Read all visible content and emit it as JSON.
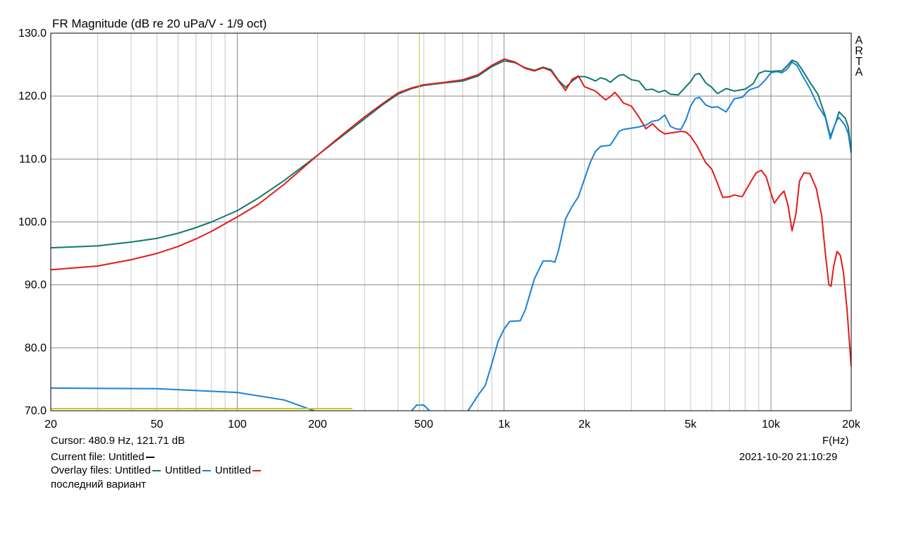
{
  "chart_data": {
    "type": "line",
    "title": "FR Magnitude (dB re 20 uPa/V - 1/9 oct)",
    "xlabel": "F(Hz)",
    "ylabel": "",
    "x_scale": "log",
    "xlim": [
      20,
      20000
    ],
    "ylim": [
      70,
      130
    ],
    "grid": true,
    "x_tick_labels": [
      {
        "value": 20,
        "label": "20"
      },
      {
        "value": 50,
        "label": "50"
      },
      {
        "value": 100,
        "label": "100"
      },
      {
        "value": 200,
        "label": "200"
      },
      {
        "value": 500,
        "label": "500"
      },
      {
        "value": 1000,
        "label": "1k"
      },
      {
        "value": 2000,
        "label": "2k"
      },
      {
        "value": 5000,
        "label": "5k"
      },
      {
        "value": 10000,
        "label": "10k"
      },
      {
        "value": 20000,
        "label": "20k"
      }
    ],
    "y_tick_labels": [
      {
        "value": 70,
        "label": "70.0"
      },
      {
        "value": 80,
        "label": "80.0"
      },
      {
        "value": 90,
        "label": "90.0"
      },
      {
        "value": 100,
        "label": "100.0"
      },
      {
        "value": 110,
        "label": "110.0"
      },
      {
        "value": 120,
        "label": "120.0"
      },
      {
        "value": 130,
        "label": "130.0"
      }
    ],
    "watermark": "ARTA",
    "cursor": {
      "frequency_hz": 480.9,
      "level_db": 121.71,
      "color": "#c8c832"
    },
    "series": [
      {
        "name": "Untitled",
        "color": "#0e7a6e",
        "points": [
          [
            20,
            95.9
          ],
          [
            30,
            96.2
          ],
          [
            40,
            96.8
          ],
          [
            50,
            97.4
          ],
          [
            60,
            98.2
          ],
          [
            70,
            99.1
          ],
          [
            80,
            100.0
          ],
          [
            100,
            101.8
          ],
          [
            120,
            103.8
          ],
          [
            150,
            106.6
          ],
          [
            200,
            110.6
          ],
          [
            250,
            113.8
          ],
          [
            300,
            116.4
          ],
          [
            350,
            118.6
          ],
          [
            400,
            120.3
          ],
          [
            450,
            121.2
          ],
          [
            500,
            121.7
          ],
          [
            600,
            122.1
          ],
          [
            700,
            122.4
          ],
          [
            800,
            123.2
          ],
          [
            900,
            124.7
          ],
          [
            1000,
            125.6
          ],
          [
            1100,
            125.3
          ],
          [
            1200,
            124.5
          ],
          [
            1300,
            124.1
          ],
          [
            1400,
            124.6
          ],
          [
            1500,
            124.2
          ],
          [
            1600,
            122.5
          ],
          [
            1700,
            121.4
          ],
          [
            1800,
            122.4
          ],
          [
            1900,
            123.1
          ],
          [
            2000,
            123.1
          ],
          [
            2100,
            122.8
          ],
          [
            2200,
            122.4
          ],
          [
            2300,
            122.9
          ],
          [
            2400,
            122.7
          ],
          [
            2500,
            122.2
          ],
          [
            2600,
            122.8
          ],
          [
            2700,
            123.3
          ],
          [
            2800,
            123.4
          ],
          [
            3000,
            122.6
          ],
          [
            3200,
            122.4
          ],
          [
            3400,
            121.0
          ],
          [
            3600,
            121.1
          ],
          [
            3800,
            120.6
          ],
          [
            4000,
            120.9
          ],
          [
            4200,
            120.3
          ],
          [
            4500,
            120.2
          ],
          [
            4800,
            121.5
          ],
          [
            5000,
            122.3
          ],
          [
            5200,
            123.4
          ],
          [
            5400,
            123.6
          ],
          [
            5700,
            122.1
          ],
          [
            6000,
            121.4
          ],
          [
            6300,
            120.4
          ],
          [
            6800,
            121.2
          ],
          [
            7300,
            120.8
          ],
          [
            8000,
            121.1
          ],
          [
            8600,
            122.0
          ],
          [
            9000,
            123.6
          ],
          [
            9500,
            124.0
          ],
          [
            10000,
            123.9
          ],
          [
            10500,
            124.0
          ],
          [
            11000,
            124.0
          ],
          [
            11500,
            124.8
          ],
          [
            12000,
            125.7
          ],
          [
            12500,
            125.4
          ],
          [
            13000,
            124.4
          ],
          [
            14000,
            122.2
          ],
          [
            15000,
            120.3
          ],
          [
            16000,
            116.8
          ],
          [
            16700,
            113.6
          ],
          [
            17500,
            115.8
          ],
          [
            18000,
            117.5
          ],
          [
            19000,
            116.5
          ],
          [
            19500,
            115.1
          ],
          [
            20000,
            111.0
          ]
        ]
      },
      {
        "name": "Untitled",
        "color": "#1a82d8",
        "points": [
          [
            20,
            73.6
          ],
          [
            50,
            73.5
          ],
          [
            100,
            72.9
          ],
          [
            150,
            71.7
          ],
          [
            200,
            69.8
          ],
          [
            220,
            69.0
          ],
          [
            430,
            69.0
          ],
          [
            470,
            70.9
          ],
          [
            500,
            70.9
          ],
          [
            540,
            69.5
          ],
          [
            720,
            69.5
          ],
          [
            800,
            72.5
          ],
          [
            850,
            74.0
          ],
          [
            900,
            77.5
          ],
          [
            950,
            81.0
          ],
          [
            1000,
            83.0
          ],
          [
            1050,
            84.2
          ],
          [
            1150,
            84.3
          ],
          [
            1200,
            86.0
          ],
          [
            1300,
            91.0
          ],
          [
            1400,
            93.8
          ],
          [
            1500,
            93.8
          ],
          [
            1550,
            93.6
          ],
          [
            1600,
            95.5
          ],
          [
            1700,
            100.5
          ],
          [
            1800,
            102.5
          ],
          [
            1900,
            104.0
          ],
          [
            2000,
            106.8
          ],
          [
            2100,
            109.4
          ],
          [
            2200,
            111.2
          ],
          [
            2300,
            112.0
          ],
          [
            2500,
            112.2
          ],
          [
            2600,
            113.3
          ],
          [
            2700,
            114.4
          ],
          [
            2800,
            114.7
          ],
          [
            3000,
            114.9
          ],
          [
            3200,
            115.1
          ],
          [
            3400,
            115.4
          ],
          [
            3600,
            116.0
          ],
          [
            3800,
            116.2
          ],
          [
            4000,
            117.0
          ],
          [
            4200,
            115.2
          ],
          [
            4400,
            114.8
          ],
          [
            4600,
            114.7
          ],
          [
            4800,
            116.2
          ],
          [
            5000,
            118.4
          ],
          [
            5200,
            119.6
          ],
          [
            5400,
            119.8
          ],
          [
            5700,
            118.6
          ],
          [
            6000,
            118.2
          ],
          [
            6300,
            118.3
          ],
          [
            6800,
            117.5
          ],
          [
            7300,
            119.6
          ],
          [
            7800,
            119.8
          ],
          [
            8300,
            121.0
          ],
          [
            9000,
            121.5
          ],
          [
            9500,
            122.5
          ],
          [
            10000,
            123.7
          ],
          [
            10500,
            123.9
          ],
          [
            11000,
            123.7
          ],
          [
            11500,
            124.3
          ],
          [
            12000,
            125.4
          ],
          [
            12500,
            124.9
          ],
          [
            13000,
            123.6
          ],
          [
            14000,
            121.2
          ],
          [
            15000,
            118.5
          ],
          [
            16000,
            116.6
          ],
          [
            16700,
            113.2
          ],
          [
            17500,
            115.9
          ],
          [
            18000,
            116.6
          ],
          [
            19000,
            115.3
          ],
          [
            19500,
            114.0
          ],
          [
            20000,
            111.0
          ]
        ]
      },
      {
        "name": "Untitled",
        "color": "#e31b1b",
        "points": [
          [
            20,
            92.4
          ],
          [
            30,
            93.0
          ],
          [
            40,
            94.0
          ],
          [
            50,
            95.0
          ],
          [
            60,
            96.1
          ],
          [
            70,
            97.3
          ],
          [
            80,
            98.5
          ],
          [
            100,
            100.8
          ],
          [
            120,
            102.8
          ],
          [
            150,
            106.0
          ],
          [
            200,
            110.6
          ],
          [
            250,
            114.0
          ],
          [
            300,
            116.7
          ],
          [
            350,
            118.8
          ],
          [
            400,
            120.5
          ],
          [
            450,
            121.3
          ],
          [
            500,
            121.8
          ],
          [
            600,
            122.2
          ],
          [
            700,
            122.6
          ],
          [
            800,
            123.4
          ],
          [
            900,
            124.9
          ],
          [
            1000,
            125.9
          ],
          [
            1100,
            125.4
          ],
          [
            1200,
            124.4
          ],
          [
            1300,
            124.0
          ],
          [
            1400,
            124.5
          ],
          [
            1500,
            124.0
          ],
          [
            1600,
            122.4
          ],
          [
            1700,
            120.9
          ],
          [
            1800,
            122.7
          ],
          [
            1900,
            123.2
          ],
          [
            2000,
            121.5
          ],
          [
            2200,
            120.8
          ],
          [
            2400,
            119.4
          ],
          [
            2500,
            119.9
          ],
          [
            2600,
            120.6
          ],
          [
            2700,
            119.8
          ],
          [
            2800,
            118.9
          ],
          [
            3000,
            118.4
          ],
          [
            3200,
            116.7
          ],
          [
            3400,
            114.8
          ],
          [
            3600,
            115.6
          ],
          [
            3800,
            114.6
          ],
          [
            4000,
            114.0
          ],
          [
            4300,
            114.2
          ],
          [
            4600,
            114.4
          ],
          [
            4800,
            114.3
          ],
          [
            5000,
            113.6
          ],
          [
            5300,
            112.0
          ],
          [
            5700,
            109.4
          ],
          [
            6000,
            108.4
          ],
          [
            6300,
            106.2
          ],
          [
            6600,
            103.9
          ],
          [
            7000,
            104.0
          ],
          [
            7300,
            104.3
          ],
          [
            7800,
            104.0
          ],
          [
            8300,
            106.0
          ],
          [
            8800,
            107.8
          ],
          [
            9200,
            108.2
          ],
          [
            9600,
            107.2
          ],
          [
            10000,
            104.6
          ],
          [
            10300,
            103.0
          ],
          [
            10800,
            104.2
          ],
          [
            11200,
            104.9
          ],
          [
            11600,
            102.6
          ],
          [
            12000,
            98.6
          ],
          [
            12400,
            101.2
          ],
          [
            12800,
            106.5
          ],
          [
            13300,
            107.8
          ],
          [
            14000,
            107.7
          ],
          [
            14800,
            105.3
          ],
          [
            15500,
            101.0
          ],
          [
            16000,
            95.0
          ],
          [
            16500,
            90.0
          ],
          [
            16800,
            89.8
          ],
          [
            17200,
            93.0
          ],
          [
            17700,
            95.3
          ],
          [
            18200,
            94.7
          ],
          [
            18700,
            92.0
          ],
          [
            19300,
            86.0
          ],
          [
            20000,
            77.0
          ]
        ]
      }
    ]
  },
  "info": {
    "cursor_text": "Cursor: 480.9 Hz, 121.71 dB",
    "current_file_label": "Current file: Untitled",
    "current_file_color": "#000000",
    "overlay_label": "Overlay files: ",
    "overlay_files": [
      {
        "name": "Untitled",
        "color": "#0e7a6e"
      },
      {
        "name": "Untitled",
        "color": "#1a82d8"
      },
      {
        "name": "Untitled",
        "color": "#e31b1b"
      }
    ],
    "comment": "последний вариант",
    "datetime": "2021-10-20  21:10:29",
    "freq_unit": "F(Hz)"
  }
}
